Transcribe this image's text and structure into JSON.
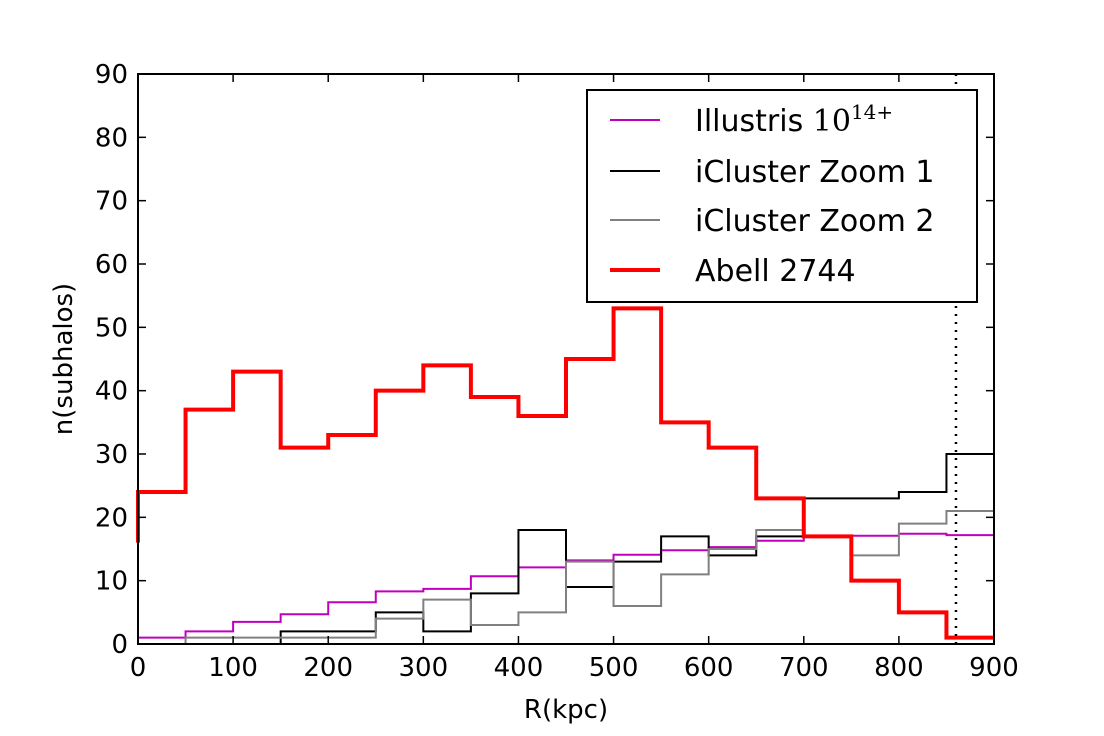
{
  "chart_data": {
    "type": "histogram-step",
    "xlabel": "R(kpc)",
    "ylabel": "n(subhalos)",
    "xlim": [
      0,
      900
    ],
    "ylim": [
      0,
      90
    ],
    "xticks": [
      "0",
      "100",
      "200",
      "300",
      "400",
      "500",
      "600",
      "700",
      "800",
      "900"
    ],
    "yticks": [
      "0",
      "10",
      "20",
      "30",
      "40",
      "50",
      "60",
      "70",
      "80",
      "90"
    ],
    "bin_edges": [
      0,
      50,
      100,
      150,
      200,
      250,
      300,
      350,
      400,
      450,
      500,
      550,
      600,
      650,
      700,
      750,
      800,
      850,
      900
    ],
    "reference_line": {
      "x": 860,
      "style": "dotted"
    },
    "grid": false,
    "legend_position": "top-right",
    "series": [
      {
        "name": "Illustris ",
        "name_math": "10",
        "name_math_sup": "14+",
        "color": "#bf00bf",
        "width": 2,
        "values": [
          1,
          2,
          3.5,
          4.7,
          6.6,
          8.3,
          8.7,
          10.7,
          12.1,
          13.2,
          14.1,
          14.8,
          15.3,
          16.3,
          16.9,
          17.1,
          17.4,
          17.2
        ]
      },
      {
        "name": "iCluster Zoom 1",
        "color": "#000000",
        "width": 2,
        "values": [
          0,
          0,
          0,
          2,
          2,
          5,
          2,
          8,
          18,
          9,
          13,
          17,
          14,
          17,
          23,
          23,
          24,
          30
        ]
      },
      {
        "name": "iCluster Zoom 2",
        "color": "#808080",
        "width": 2,
        "values": [
          0,
          1,
          1,
          1,
          1,
          4,
          7,
          3,
          5,
          13,
          6,
          11,
          15,
          18,
          17,
          14,
          19,
          21
        ]
      },
      {
        "name": "Abell 2744",
        "color": "#ff0000",
        "width": 4,
        "start_value": 16,
        "values": [
          24,
          37,
          43,
          31,
          33,
          40,
          44,
          39,
          36,
          45,
          53,
          35,
          31,
          23,
          17,
          10,
          5,
          1
        ]
      }
    ]
  }
}
